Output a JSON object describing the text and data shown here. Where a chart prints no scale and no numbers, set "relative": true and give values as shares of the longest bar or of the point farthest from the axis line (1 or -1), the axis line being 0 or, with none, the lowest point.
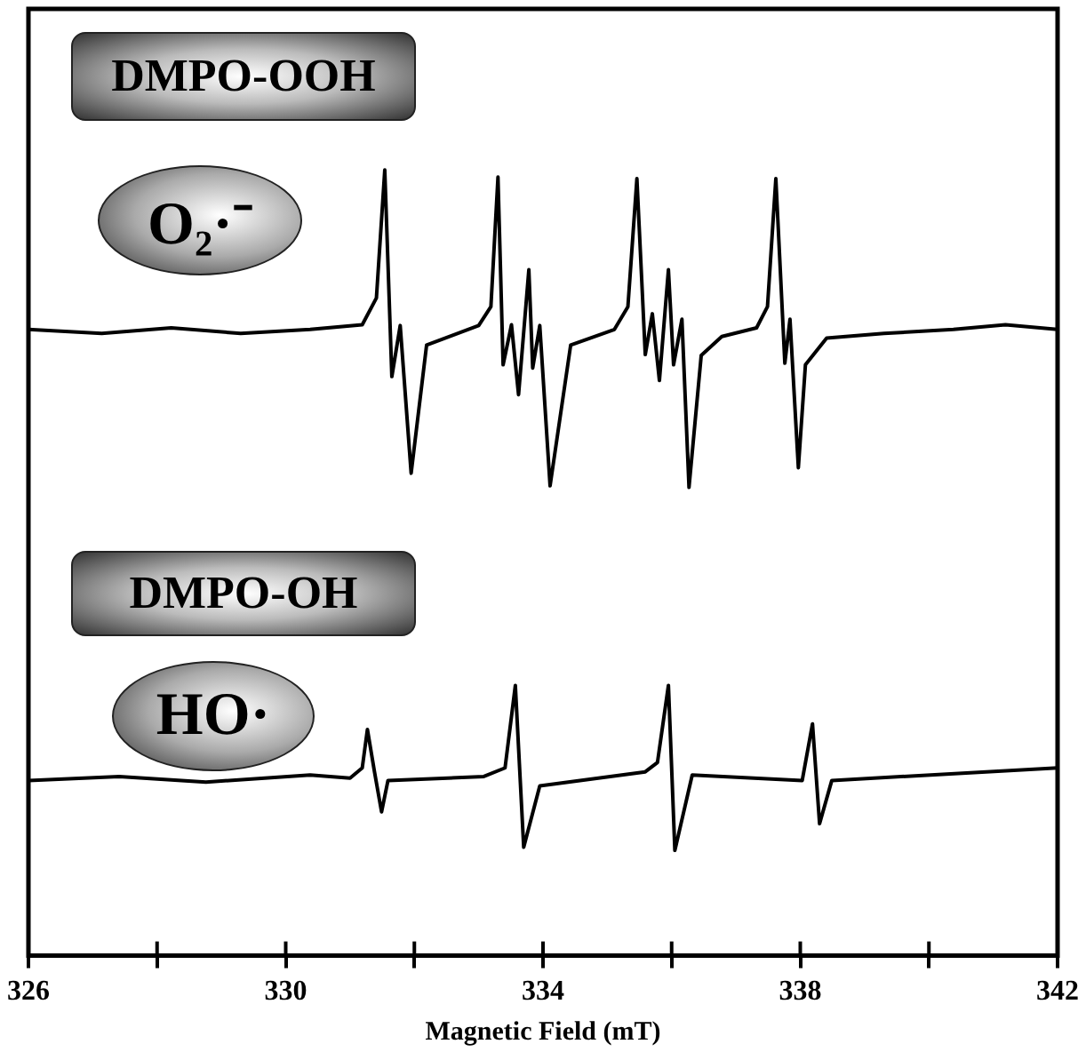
{
  "chart_data": {
    "type": "line",
    "relative": true,
    "xlabel": "Magnetic Field (mT)",
    "xlim": [
      326,
      342
    ],
    "xticks": [
      326,
      {
        "value": 328,
        "label": null
      },
      330,
      {
        "value": 332,
        "label": null
      },
      334,
      {
        "value": 336,
        "label": null
      },
      338,
      {
        "value": 340,
        "label": null
      },
      342
    ],
    "grid": false,
    "legend": false,
    "marker": "none",
    "line_style": "solid",
    "annotations": [
      "DMPO-OOH",
      "O₂·⁻",
      "DMPO-OH",
      "HO·"
    ],
    "series": [
      {
        "color": "#000000",
        "x": [
          326.0,
          327.14,
          328.22,
          329.3,
          330.38,
          331.19,
          331.41,
          331.54,
          331.65,
          331.78,
          331.95,
          332.19,
          333.0,
          333.19,
          333.3,
          333.38,
          333.51,
          333.62,
          333.78,
          333.84,
          333.95,
          334.11,
          334.43,
          335.11,
          335.32,
          335.46,
          335.59,
          335.7,
          335.81,
          335.95,
          336.03,
          336.16,
          336.27,
          336.46,
          336.78,
          337.32,
          337.49,
          337.62,
          337.76,
          337.84,
          337.97,
          338.08,
          338.41,
          339.3,
          340.38,
          341.19,
          342.0
        ],
        "values": [
          0.797,
          0.792,
          0.799,
          0.792,
          0.797,
          0.803,
          0.837,
          1,
          0.737,
          0.802,
          0.614,
          0.777,
          0.802,
          0.826,
          0.991,
          0.752,
          0.803,
          0.714,
          0.873,
          0.748,
          0.802,
          0.598,
          0.777,
          0.797,
          0.826,
          0.989,
          0.765,
          0.817,
          0.732,
          0.873,
          0.752,
          0.81,
          0.596,
          0.764,
          0.788,
          0.799,
          0.826,
          0.989,
          0.754,
          0.81,
          0.621,
          0.752,
          0.786,
          0.792,
          0.797,
          0.803,
          0.797
        ]
      },
      {
        "color": "#000000",
        "x": [
          326.0,
          327.41,
          328.76,
          330.38,
          331.0,
          331.19,
          331.27,
          331.38,
          331.49,
          331.59,
          333.08,
          333.41,
          333.57,
          333.7,
          333.95,
          335.59,
          335.78,
          335.95,
          336.05,
          336.32,
          338.03,
          338.19,
          338.3,
          338.49,
          342.0
        ],
        "values": [
          0.223,
          0.228,
          0.221,
          0.23,
          0.226,
          0.239,
          0.288,
          0.234,
          0.183,
          0.223,
          0.228,
          0.239,
          0.344,
          0.138,
          0.216,
          0.234,
          0.246,
          0.344,
          0.134,
          0.23,
          0.223,
          0.295,
          0.168,
          0.223,
          0.239
        ]
      }
    ]
  }
}
